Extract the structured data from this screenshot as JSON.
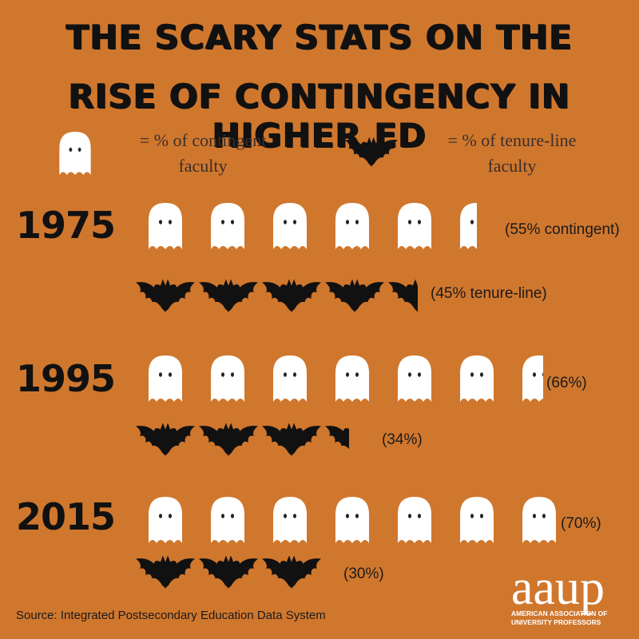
{
  "title": {
    "line1": "THE SCARY STATS ON THE",
    "line2": "RISE OF CONTINGENCY IN HIGHER ED"
  },
  "legend": {
    "ghost_icon": "ghost-icon",
    "bat_icon": "bat-icon",
    "ghost_line1": "= % of  contingent",
    "ghost_line2": "faculty",
    "bat_line1": "=  % of tenure-line",
    "bat_line2": "faculty"
  },
  "chart_data": {
    "type": "pictograph",
    "unit_per_icon": 10,
    "series": [
      {
        "name": "contingent",
        "icon": "ghost-icon",
        "color": "#FFFFFF"
      },
      {
        "name": "tenure-line",
        "icon": "bat-icon",
        "color": "#111111"
      }
    ],
    "rows": [
      {
        "year": "1975",
        "contingent": 55,
        "tenure_line": 45,
        "contingent_label": "(55% contingent)",
        "tenure_label": "(45% tenure-line)"
      },
      {
        "year": "1995",
        "contingent": 66,
        "tenure_line": 34,
        "contingent_label": "(66%)",
        "tenure_label": "(34%)"
      },
      {
        "year": "2015",
        "contingent": 70,
        "tenure_line": 30,
        "contingent_label": "(70%)",
        "tenure_label": "(30%)"
      }
    ]
  },
  "source": "Source: Integrated Postsecondary Education Data System",
  "logo": {
    "word": "aaup",
    "sub1": "AMERICAN ASSOCIATION OF",
    "sub2": "UNIVERSITY PROFESSORS"
  },
  "colors": {
    "background": "#D0772E",
    "ghost": "#FFFFFF",
    "bat": "#111111",
    "text": "#1a1a1a"
  }
}
